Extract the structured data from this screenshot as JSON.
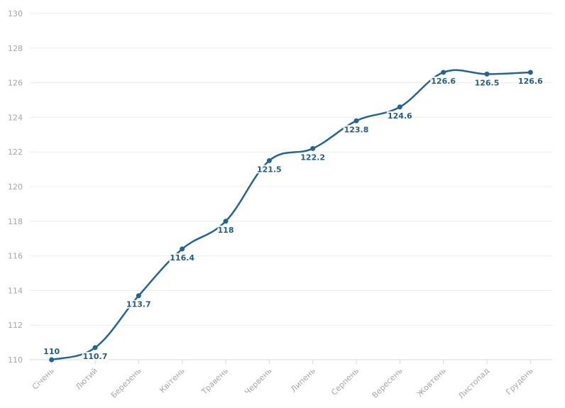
{
  "chart_data": {
    "type": "line",
    "categories": [
      "Січень",
      "Лютий",
      "Березень",
      "Квітень",
      "Травень",
      "Червень",
      "Липень",
      "Серпень",
      "Вересень",
      "Жовтень",
      "Листопад",
      "Грудень"
    ],
    "series": [
      {
        "values": [
          110,
          110.7,
          113.7,
          116.4,
          118,
          121.5,
          122.2,
          123.8,
          124.6,
          126.6,
          126.5,
          126.6
        ]
      }
    ],
    "data_labels": [
      "110",
      "110.7",
      "113.7",
      "116.4",
      "118",
      "121.5",
      "122.2",
      "123.8",
      "124.6",
      "126.6",
      "126.5",
      "126.6"
    ],
    "y_ticks": [
      "110",
      "112",
      "114",
      "116",
      "118",
      "120",
      "122",
      "124",
      "126",
      "128",
      "130"
    ],
    "ylim": [
      110,
      130
    ],
    "title": "",
    "xlabel": "",
    "ylabel": "",
    "grid": true,
    "legend": "none",
    "colors": {
      "line": "#236592",
      "labels": "#1f5f86",
      "ticks": "#a6a6a6",
      "grid": "#ececec"
    }
  }
}
